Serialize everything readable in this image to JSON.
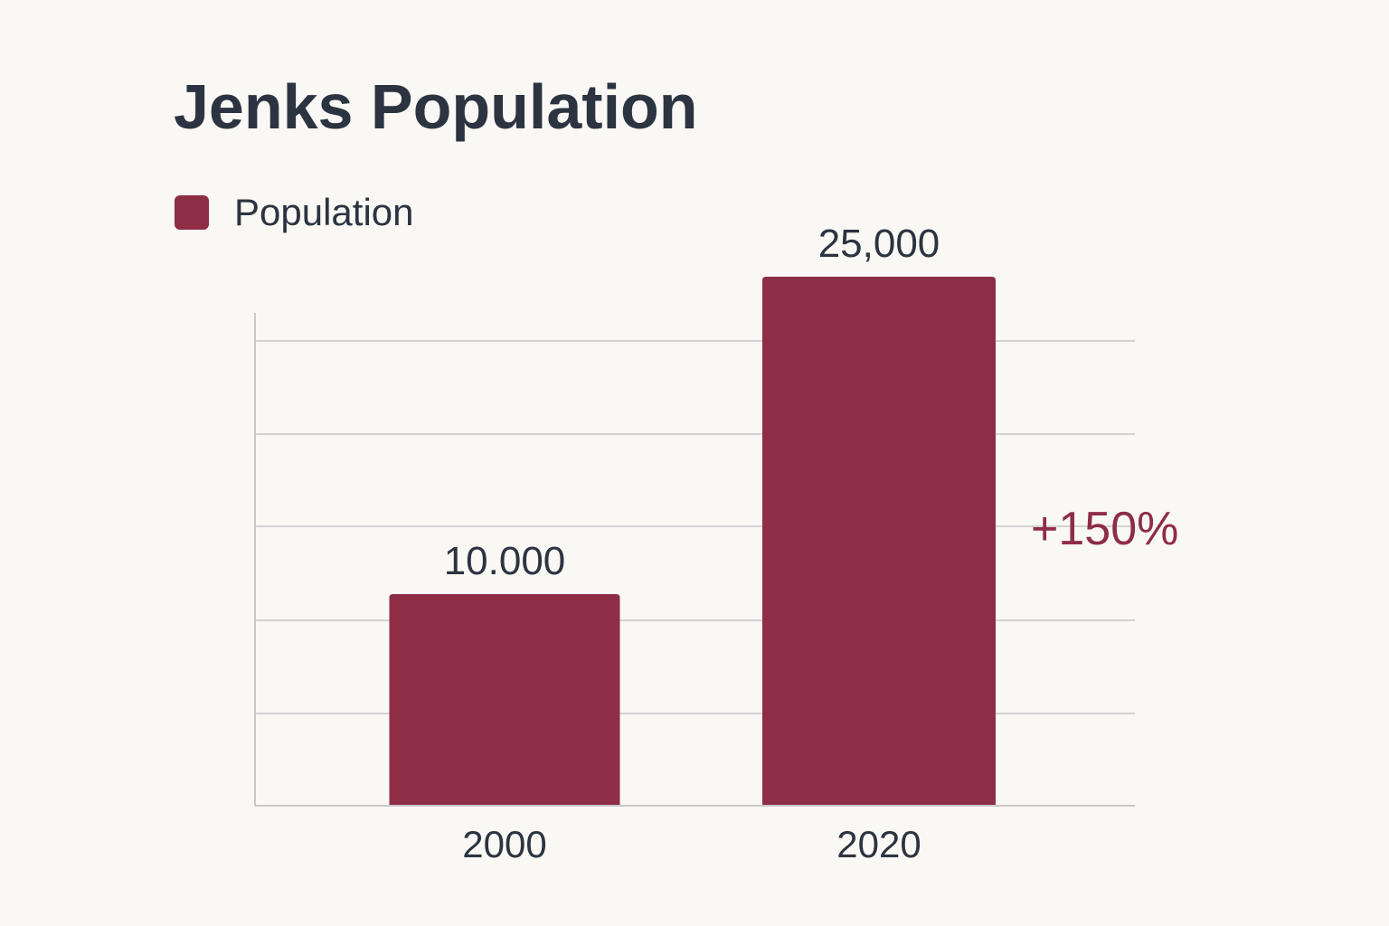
{
  "chart_data": {
    "type": "bar",
    "title": "Jenks Population",
    "legend": {
      "position": "top-left",
      "entries": [
        "Population"
      ]
    },
    "categories": [
      "2000",
      "2020"
    ],
    "series": [
      {
        "name": "Population",
        "values": [
          10000,
          25000
        ],
        "color": "#8e2d46"
      }
    ],
    "data_labels": [
      "10.000",
      "25,000"
    ],
    "annotation": {
      "text": "+150%",
      "color": "#8e2d46"
    },
    "xlabel": "",
    "ylabel": "",
    "ylim": [
      0,
      25000
    ],
    "grid": true
  }
}
